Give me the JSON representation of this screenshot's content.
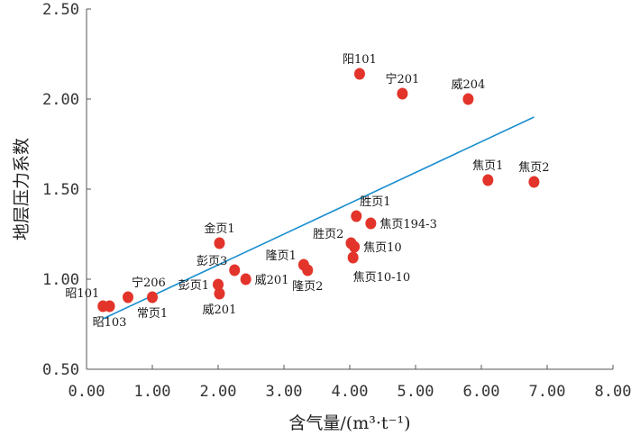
{
  "chart_data": {
    "type": "scatter",
    "title": "",
    "xlabel": "含气量/(m³·t⁻¹)",
    "ylabel": "地层压力系数",
    "xlim": [
      0,
      8
    ],
    "ylim": [
      0.5,
      2.5
    ],
    "xticks": [
      "0.00",
      "1.00",
      "2.00",
      "3.00",
      "4.00",
      "5.00",
      "6.00",
      "7.00",
      "8.00"
    ],
    "yticks": [
      "0.50",
      "1.00",
      "1.50",
      "2.00",
      "2.50"
    ],
    "grid": false,
    "colors": {
      "point": "#e3342b",
      "trend": "#1a8fcf",
      "axis": "#555555"
    },
    "trendline": {
      "x": [
        0.25,
        6.8
      ],
      "y": [
        0.78,
        1.9
      ]
    },
    "points": [
      {
        "label": "阳101",
        "x": 4.15,
        "y": 2.14,
        "labelPos": "above"
      },
      {
        "label": "宁201",
        "x": 4.8,
        "y": 2.03,
        "labelPos": "above"
      },
      {
        "label": "威204",
        "x": 5.8,
        "y": 2.0,
        "labelPos": "above"
      },
      {
        "label": "焦页1",
        "x": 6.1,
        "y": 1.55,
        "labelPos": "above"
      },
      {
        "label": "焦页2",
        "x": 6.8,
        "y": 1.54,
        "labelPos": "above"
      },
      {
        "label": "胜页1",
        "x": 4.1,
        "y": 1.35,
        "labelPos": "above-right"
      },
      {
        "label": "焦页194-3",
        "x": 4.32,
        "y": 1.31,
        "labelPos": "right"
      },
      {
        "label": "胜页2",
        "x": 4.02,
        "y": 1.2,
        "labelPos": "left-above"
      },
      {
        "label": "焦页10",
        "x": 4.07,
        "y": 1.18,
        "labelPos": "right"
      },
      {
        "label": "焦页10-10",
        "x": 4.05,
        "y": 1.12,
        "labelPos": "below-right"
      },
      {
        "label": "金页1",
        "x": 2.02,
        "y": 1.2,
        "labelPos": "above"
      },
      {
        "label": "隆页1",
        "x": 3.3,
        "y": 1.08,
        "labelPos": "left-above"
      },
      {
        "label": "隆页2",
        "x": 3.36,
        "y": 1.05,
        "labelPos": "below"
      },
      {
        "label": "彭页3",
        "x": 2.25,
        "y": 1.05,
        "labelPos": "left-above"
      },
      {
        "label": "威201",
        "x": 2.42,
        "y": 1.0,
        "labelPos": "right"
      },
      {
        "label": "彭页1",
        "x": 2.0,
        "y": 0.97,
        "labelPos": "left"
      },
      {
        "label": "威201",
        "x": 2.02,
        "y": 0.92,
        "labelPos": "below"
      },
      {
        "label": "宁206",
        "x": 0.63,
        "y": 0.9,
        "labelPos": "above-right"
      },
      {
        "label": "常页1",
        "x": 1.0,
        "y": 0.9,
        "labelPos": "below"
      },
      {
        "label": "昭101",
        "x": 0.25,
        "y": 0.85,
        "labelPos": "above-left"
      },
      {
        "label": "昭103",
        "x": 0.35,
        "y": 0.85,
        "labelPos": "below"
      }
    ]
  }
}
